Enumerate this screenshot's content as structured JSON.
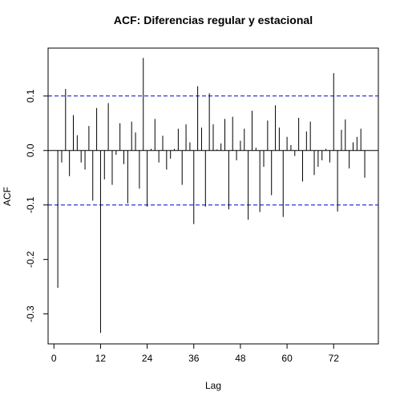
{
  "chart_data": {
    "type": "bar",
    "title": "ACF: Diferencias regular y estacional",
    "xlabel": "Lag",
    "ylabel": "ACF",
    "xlim": [
      -1.5,
      83.5
    ],
    "ylim": [
      -0.355,
      0.188
    ],
    "x_ticks": [
      0,
      12,
      24,
      36,
      48,
      60,
      72
    ],
    "x_tick_labels": [
      "0",
      "12",
      "24",
      "36",
      "48",
      "60",
      "72"
    ],
    "y_ticks": [
      -0.3,
      -0.2,
      -0.1,
      0.0,
      0.1
    ],
    "y_tick_labels": [
      "-0.3",
      "-0.2",
      "-0.1",
      "0.0",
      "0.1"
    ],
    "confidence_bound": 0.1,
    "confidence_color": "#0000cc",
    "bar_color": "#000000",
    "lags": [
      1,
      2,
      3,
      4,
      5,
      6,
      7,
      8,
      9,
      10,
      11,
      12,
      13,
      14,
      15,
      16,
      17,
      18,
      19,
      20,
      21,
      22,
      23,
      24,
      25,
      26,
      27,
      28,
      29,
      30,
      31,
      32,
      33,
      34,
      35,
      36,
      37,
      38,
      39,
      40,
      41,
      42,
      43,
      44,
      45,
      46,
      47,
      48,
      49,
      50,
      51,
      52,
      53,
      54,
      55,
      56,
      57,
      58,
      59,
      60,
      61,
      62,
      63,
      64,
      65,
      66,
      67,
      68,
      69,
      70,
      71,
      72,
      73,
      74,
      75,
      76,
      77,
      78,
      79,
      80
    ],
    "values": [
      -0.252,
      -0.022,
      0.113,
      -0.047,
      0.065,
      0.028,
      -0.022,
      -0.035,
      0.045,
      -0.092,
      0.078,
      -0.335,
      -0.053,
      0.087,
      -0.063,
      -0.008,
      0.05,
      -0.025,
      -0.097,
      0.053,
      0.033,
      -0.07,
      0.17,
      -0.103,
      0.003,
      0.058,
      -0.022,
      0.027,
      -0.035,
      -0.015,
      0.003,
      0.04,
      -0.063,
      0.048,
      0.015,
      -0.135,
      0.118,
      0.042,
      -0.103,
      0.105,
      0.048,
      0.002,
      0.013,
      0.058,
      -0.108,
      0.062,
      -0.018,
      0.018,
      0.04,
      -0.127,
      0.073,
      0.005,
      -0.113,
      -0.03,
      0.055,
      -0.082,
      0.083,
      0.042,
      -0.122,
      0.025,
      0.01,
      -0.01,
      0.06,
      -0.057,
      0.035,
      0.053,
      -0.045,
      -0.03,
      -0.018,
      0.003,
      -0.022,
      0.142,
      -0.112,
      0.038,
      0.057,
      -0.033,
      0.015,
      0.025,
      0.04,
      -0.05
    ]
  }
}
